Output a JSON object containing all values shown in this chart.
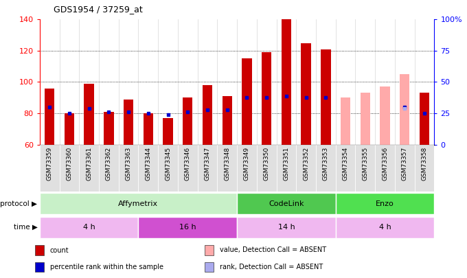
{
  "title": "GDS1954 / 37259_at",
  "samples": [
    "GSM73359",
    "GSM73360",
    "GSM73361",
    "GSM73362",
    "GSM73363",
    "GSM73344",
    "GSM73345",
    "GSM73346",
    "GSM73347",
    "GSM73348",
    "GSM73349",
    "GSM73350",
    "GSM73351",
    "GSM73352",
    "GSM73353",
    "GSM73354",
    "GSM73355",
    "GSM73356",
    "GSM73357",
    "GSM73358"
  ],
  "count_values": [
    96,
    80,
    99,
    81,
    89,
    80,
    77,
    90,
    98,
    91,
    115,
    119,
    140,
    125,
    121,
    null,
    null,
    null,
    null,
    93
  ],
  "rank_values": [
    84,
    80,
    83,
    81,
    81,
    80,
    79,
    81,
    82,
    82,
    90,
    90,
    91,
    90,
    90,
    null,
    null,
    null,
    84,
    80
  ],
  "absent_count_values": [
    null,
    null,
    null,
    null,
    null,
    null,
    null,
    null,
    null,
    null,
    null,
    null,
    null,
    null,
    null,
    90,
    93,
    97,
    105,
    null
  ],
  "absent_rank_values": [
    null,
    null,
    null,
    null,
    null,
    null,
    null,
    null,
    null,
    null,
    null,
    null,
    null,
    null,
    null,
    null,
    null,
    null,
    83,
    null
  ],
  "ylim": [
    60,
    140
  ],
  "y2lim": [
    0,
    100
  ],
  "yticks_left": [
    60,
    80,
    100,
    120,
    140
  ],
  "yticks_right": [
    0,
    25,
    50,
    75,
    100
  ],
  "ytick_labels_right": [
    "0",
    "25",
    "50",
    "75",
    "100%"
  ],
  "protocol_groups": [
    {
      "label": "Affymetrix",
      "start": 0,
      "end": 10,
      "color": "#c8f0c8"
    },
    {
      "label": "CodeLink",
      "start": 10,
      "end": 15,
      "color": "#50c850"
    },
    {
      "label": "Enzo",
      "start": 15,
      "end": 20,
      "color": "#50e050"
    }
  ],
  "time_groups": [
    {
      "label": "4 h",
      "start": 0,
      "end": 5,
      "color": "#f0b8f0"
    },
    {
      "label": "16 h",
      "start": 5,
      "end": 10,
      "color": "#d050d0"
    },
    {
      "label": "14 h",
      "start": 10,
      "end": 15,
      "color": "#f0b8f0"
    },
    {
      "label": "4 h",
      "start": 15,
      "end": 20,
      "color": "#f0b8f0"
    }
  ],
  "bar_color_present": "#cc0000",
  "bar_color_absent": "#ffaaaa",
  "rank_color_present": "#0000cc",
  "rank_color_absent": "#aaaaee",
  "bar_bottom": 60,
  "legend_items": [
    {
      "color": "#cc0000",
      "label": "count"
    },
    {
      "color": "#0000cc",
      "label": "percentile rank within the sample"
    },
    {
      "color": "#ffaaaa",
      "label": "value, Detection Call = ABSENT"
    },
    {
      "color": "#aaaaee",
      "label": "rank, Detection Call = ABSENT"
    }
  ]
}
